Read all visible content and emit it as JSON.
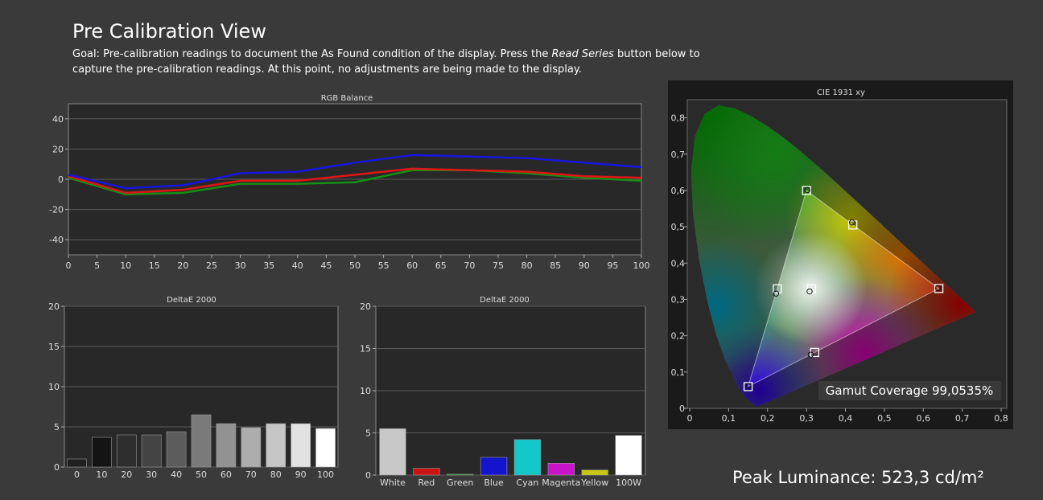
{
  "page": {
    "title": "Pre Calibration View",
    "goal_prefix": "Goal: Pre-calibration readings to document the As Found condition of the display. Press the ",
    "goal_button": "Read Series",
    "goal_suffix": " button below to capture the pre-calibration readings. At this point, no adjustments are being made to the display.",
    "peak_luminance": "Peak Luminance: 523,3 cd/m²"
  },
  "chart_data": [
    {
      "type": "line",
      "title": "RGB Balance",
      "x": [
        0,
        10,
        20,
        30,
        40,
        50,
        60,
        70,
        80,
        90,
        100
      ],
      "xticks": [
        0,
        5,
        10,
        15,
        20,
        25,
        30,
        35,
        40,
        45,
        50,
        55,
        60,
        65,
        70,
        75,
        80,
        85,
        90,
        95,
        100
      ],
      "ylim": [
        -50,
        50
      ],
      "yticks": [
        40,
        20,
        0,
        -20,
        -40
      ],
      "grid": true,
      "series": [
        {
          "color": "#1515e0",
          "values": [
            3,
            -6,
            -4,
            4,
            5,
            11,
            16,
            15,
            14,
            11,
            8
          ]
        },
        {
          "color": "#e01515",
          "values": [
            2,
            -9,
            -7,
            -1,
            -1,
            3,
            7,
            6,
            5,
            2,
            1
          ]
        },
        {
          "color": "#159015",
          "values": [
            1,
            -10,
            -9,
            -3,
            -3,
            -2,
            6,
            6,
            4,
            1,
            -1
          ]
        }
      ]
    },
    {
      "type": "bar",
      "title": "DeltaE 2000",
      "categories": [
        "0",
        "10",
        "20",
        "30",
        "40",
        "50",
        "60",
        "70",
        "80",
        "90",
        "100"
      ],
      "values": [
        1.0,
        3.7,
        4.0,
        4.0,
        4.4,
        6.5,
        5.4,
        4.9,
        5.4,
        5.4,
        4.8
      ],
      "colors": [
        "#202020",
        "#141414",
        "#2e2e2e",
        "#444444",
        "#5c5c5c",
        "#7a7a7a",
        "#929292",
        "#adadad",
        "#c6c6c6",
        "#e2e2e2",
        "#ffffff"
      ],
      "ylim": [
        0,
        20
      ],
      "yticks": [
        20,
        15,
        10,
        5,
        0
      ],
      "grid": true
    },
    {
      "type": "bar",
      "title": "DeltaE 2000",
      "categories": [
        "White",
        "Red",
        "Green",
        "Blue",
        "Cyan",
        "Magenta",
        "Yellow",
        "100W"
      ],
      "values": [
        5.5,
        0.8,
        0.1,
        2.1,
        4.2,
        1.4,
        0.6,
        4.7
      ],
      "colors": [
        "#c8c8c8",
        "#cc1111",
        "#119911",
        "#1414cc",
        "#12c8c8",
        "#c814c8",
        "#c8c812",
        "#ffffff"
      ],
      "ylim": [
        0,
        20
      ],
      "yticks": [
        20,
        15,
        10,
        5,
        0
      ],
      "grid": true
    },
    {
      "type": "scatter",
      "title": "CIE 1931 xy",
      "xlim": [
        0,
        0.8
      ],
      "ylim": [
        0,
        0.85
      ],
      "xticks": [
        "0",
        "0,1",
        "0,2",
        "0,3",
        "0,4",
        "0,5",
        "0,6",
        "0,7",
        "0,8"
      ],
      "yticks": [
        "0",
        "0,1",
        "0,2",
        "0,3",
        "0,4",
        "0,5",
        "0,6",
        "0,7",
        "0,8"
      ],
      "targets": [
        {
          "name": "red",
          "x": 0.64,
          "y": 0.33
        },
        {
          "name": "green",
          "x": 0.3,
          "y": 0.6
        },
        {
          "name": "blue",
          "x": 0.15,
          "y": 0.06
        },
        {
          "name": "cyan",
          "x": 0.225,
          "y": 0.329
        },
        {
          "name": "magenta",
          "x": 0.321,
          "y": 0.154
        },
        {
          "name": "yellow",
          "x": 0.419,
          "y": 0.505
        },
        {
          "name": "white",
          "x": 0.3127,
          "y": 0.329
        }
      ],
      "measured": [
        {
          "name": "red",
          "x": 0.638,
          "y": 0.331
        },
        {
          "name": "green",
          "x": 0.302,
          "y": 0.601
        },
        {
          "name": "blue",
          "x": 0.151,
          "y": 0.062
        },
        {
          "name": "cyan",
          "x": 0.222,
          "y": 0.316
        },
        {
          "name": "magenta",
          "x": 0.311,
          "y": 0.148
        },
        {
          "name": "yellow",
          "x": 0.417,
          "y": 0.512
        },
        {
          "name": "white",
          "x": 0.308,
          "y": 0.322
        }
      ],
      "gamut_coverage": "Gamut Coverage 99,0535%"
    }
  ]
}
